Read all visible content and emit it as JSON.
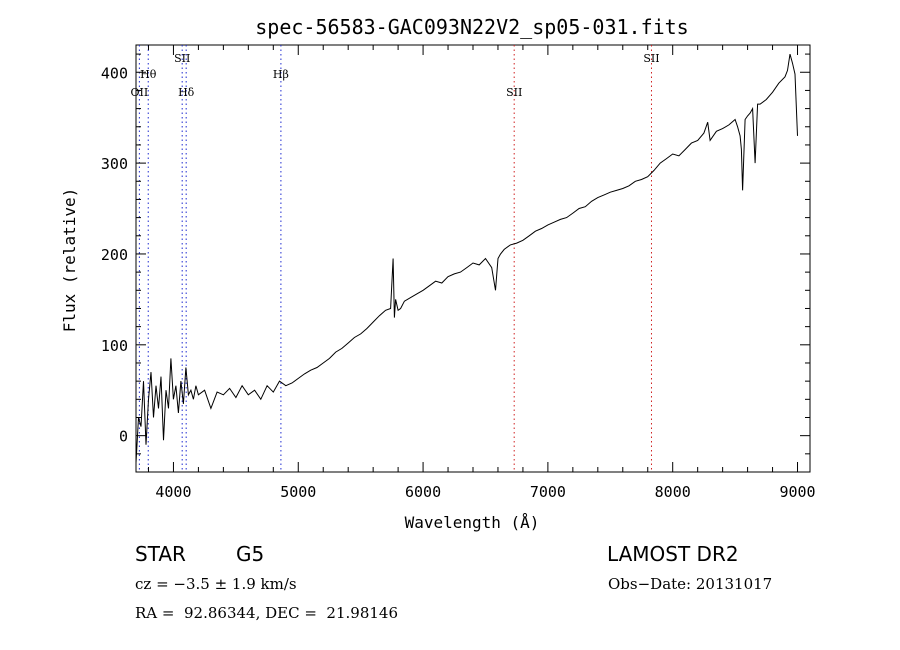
{
  "chart_data": {
    "type": "line",
    "title": "spec-56583-GAC093N22V2_sp05-031.fits",
    "xlabel": "Wavelength (Å)",
    "ylabel": "Flux (relative)",
    "xlim": [
      3700,
      9100
    ],
    "ylim": [
      -40,
      430
    ],
    "x_ticks": [
      4000,
      5000,
      6000,
      7000,
      8000,
      9000
    ],
    "y_ticks": [
      0,
      100,
      200,
      300,
      400
    ],
    "grid": false,
    "line_color": "#000000",
    "marker_color_blue": "#1f2bd0",
    "marker_color_red": "#d02020",
    "spectral_lines": [
      {
        "label": "OII",
        "wavelength": 3727,
        "color": "blue",
        "row": "low"
      },
      {
        "label": "Hθ",
        "wavelength": 3798,
        "color": "blue",
        "row": "mid"
      },
      {
        "label": "SII",
        "wavelength": 4070,
        "color": "blue",
        "row": "high"
      },
      {
        "label": "Hδ",
        "wavelength": 4102,
        "color": "blue",
        "row": "low"
      },
      {
        "label": "Hβ",
        "wavelength": 4861,
        "color": "blue",
        "row": "mid"
      },
      {
        "label": "SII",
        "wavelength": 6730,
        "color": "red",
        "row": "low"
      },
      {
        "label": "SII",
        "wavelength": 7830,
        "color": "red",
        "row": "high"
      }
    ],
    "series": [
      {
        "x": [
          3700,
          3720,
          3740,
          3760,
          3780,
          3800,
          3820,
          3840,
          3860,
          3880,
          3900,
          3920,
          3940,
          3960,
          3980,
          4000,
          4020,
          4040,
          4060,
          4080,
          4100,
          4120,
          4140,
          4160,
          4180,
          4200,
          4250,
          4300,
          4350,
          4400,
          4450,
          4500,
          4550,
          4600,
          4650,
          4700,
          4750,
          4800,
          4850,
          4900,
          4950,
          5000,
          5050,
          5100,
          5150,
          5200,
          5250,
          5300,
          5350,
          5400,
          5450,
          5500,
          5550,
          5600,
          5650,
          5700,
          5740,
          5760,
          5770,
          5780,
          5800,
          5820,
          5850,
          5900,
          5950,
          6000,
          6050,
          6100,
          6150,
          6200,
          6250,
          6300,
          6350,
          6400,
          6450,
          6500,
          6550,
          6580,
          6600,
          6620,
          6650,
          6700,
          6750,
          6800,
          6850,
          6900,
          6950,
          7000,
          7050,
          7100,
          7150,
          7200,
          7250,
          7300,
          7350,
          7400,
          7450,
          7500,
          7550,
          7600,
          7650,
          7700,
          7750,
          7800,
          7850,
          7900,
          7950,
          8000,
          8050,
          8100,
          8150,
          8200,
          8250,
          8280,
          8300,
          8350,
          8400,
          8450,
          8500,
          8520,
          8540,
          8550,
          8560,
          8580,
          8600,
          8620,
          8640,
          8660,
          8680,
          8700,
          8750,
          8800,
          8850,
          8900,
          8920,
          8940,
          8960,
          8980,
          9000
        ],
        "y": [
          -30,
          20,
          10,
          60,
          -10,
          40,
          70,
          20,
          55,
          30,
          65,
          -5,
          50,
          30,
          85,
          40,
          55,
          25,
          60,
          35,
          75,
          45,
          50,
          40,
          55,
          45,
          50,
          30,
          48,
          45,
          52,
          42,
          55,
          45,
          50,
          40,
          55,
          48,
          60,
          55,
          58,
          63,
          68,
          72,
          75,
          80,
          85,
          92,
          96,
          102,
          108,
          112,
          118,
          125,
          132,
          138,
          140,
          195,
          130,
          150,
          138,
          140,
          148,
          152,
          156,
          160,
          165,
          170,
          168,
          175,
          178,
          180,
          185,
          190,
          188,
          195,
          185,
          160,
          195,
          200,
          205,
          210,
          212,
          215,
          220,
          225,
          228,
          232,
          235,
          238,
          240,
          245,
          250,
          252,
          258,
          262,
          265,
          268,
          270,
          272,
          275,
          280,
          282,
          285,
          292,
          300,
          305,
          310,
          308,
          315,
          322,
          325,
          333,
          345,
          325,
          335,
          338,
          342,
          348,
          340,
          330,
          315,
          270,
          348,
          352,
          355,
          360,
          300,
          365,
          365,
          370,
          378,
          388,
          395,
          402,
          420,
          410,
          398,
          330
        ]
      }
    ]
  },
  "info": {
    "object_type": "STAR",
    "subclass": "G5",
    "survey": "LAMOST DR2",
    "velocity": "cz = −3.5 ± 1.9 km/s",
    "obs_date": "Obs−Date: 20131017",
    "coords": "RA =  92.86344, DEC =  21.98146"
  }
}
